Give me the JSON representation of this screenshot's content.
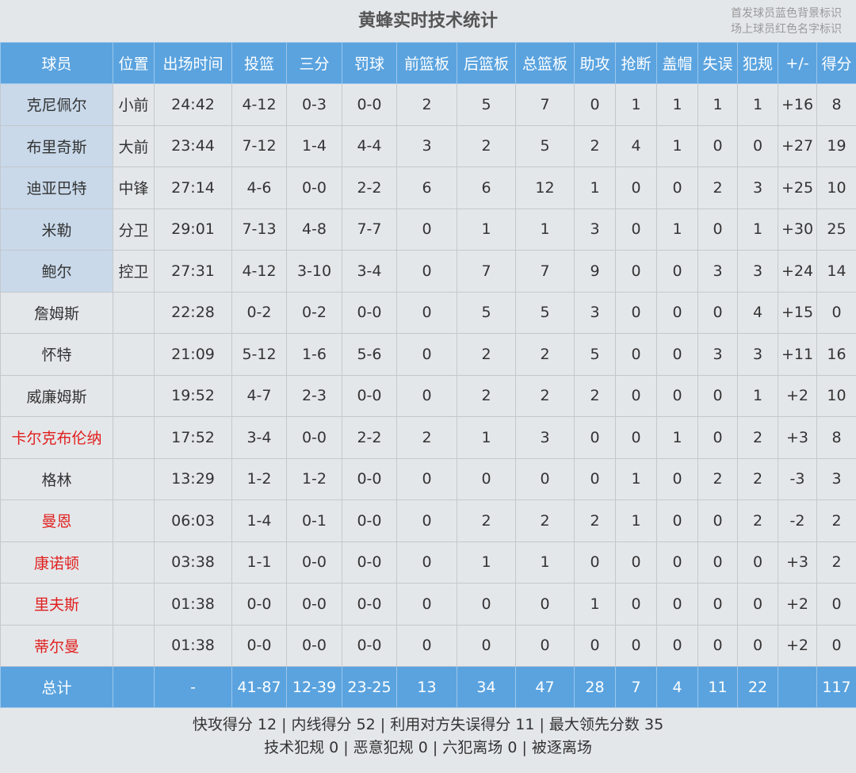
{
  "title": "黄蜂实时技术统计",
  "legend": [
    "首发球员蓝色背景标识",
    "场上球员红色名字标识"
  ],
  "colors": {
    "header": "#5aa3df",
    "starter_bg": "#c9d9ea",
    "on_court_name": "#e0201e"
  },
  "columns": [
    "球员",
    "位置",
    "出场时间",
    "投篮",
    "三分",
    "罚球",
    "前篮板",
    "后篮板",
    "总篮板",
    "助攻",
    "抢断",
    "盖帽",
    "失误",
    "犯规",
    "+/-",
    "得分"
  ],
  "players": [
    {
      "cells": [
        "克尼佩尔",
        "小前",
        "24:42",
        "4-12",
        "0-3",
        "0-0",
        "2",
        "5",
        "7",
        "0",
        "1",
        "1",
        "1",
        "1",
        "+16",
        "8"
      ],
      "starter": true,
      "on_court": false
    },
    {
      "cells": [
        "布里奇斯",
        "大前",
        "23:44",
        "7-12",
        "1-4",
        "4-4",
        "3",
        "2",
        "5",
        "2",
        "4",
        "1",
        "0",
        "0",
        "+27",
        "19"
      ],
      "starter": true,
      "on_court": false
    },
    {
      "cells": [
        "迪亚巴特",
        "中锋",
        "27:14",
        "4-6",
        "0-0",
        "2-2",
        "6",
        "6",
        "12",
        "1",
        "0",
        "0",
        "2",
        "3",
        "+25",
        "10"
      ],
      "starter": true,
      "on_court": false
    },
    {
      "cells": [
        "米勒",
        "分卫",
        "29:01",
        "7-13",
        "4-8",
        "7-7",
        "0",
        "1",
        "1",
        "3",
        "0",
        "1",
        "0",
        "1",
        "+30",
        "25"
      ],
      "starter": true,
      "on_court": false
    },
    {
      "cells": [
        "鲍尔",
        "控卫",
        "27:31",
        "4-12",
        "3-10",
        "3-4",
        "0",
        "7",
        "7",
        "9",
        "0",
        "0",
        "3",
        "3",
        "+24",
        "14"
      ],
      "starter": true,
      "on_court": false
    },
    {
      "cells": [
        "詹姆斯",
        "",
        "22:28",
        "0-2",
        "0-2",
        "0-0",
        "0",
        "5",
        "5",
        "3",
        "0",
        "0",
        "0",
        "4",
        "+15",
        "0"
      ],
      "starter": false,
      "on_court": false
    },
    {
      "cells": [
        "怀特",
        "",
        "21:09",
        "5-12",
        "1-6",
        "5-6",
        "0",
        "2",
        "2",
        "5",
        "0",
        "0",
        "3",
        "3",
        "+11",
        "16"
      ],
      "starter": false,
      "on_court": false
    },
    {
      "cells": [
        "威廉姆斯",
        "",
        "19:52",
        "4-7",
        "2-3",
        "0-0",
        "0",
        "2",
        "2",
        "2",
        "0",
        "0",
        "0",
        "1",
        "+2",
        "10"
      ],
      "starter": false,
      "on_court": false
    },
    {
      "cells": [
        "卡尔克布伦纳",
        "",
        "17:52",
        "3-4",
        "0-0",
        "2-2",
        "2",
        "1",
        "3",
        "0",
        "0",
        "1",
        "0",
        "2",
        "+3",
        "8"
      ],
      "starter": false,
      "on_court": true
    },
    {
      "cells": [
        "格林",
        "",
        "13:29",
        "1-2",
        "1-2",
        "0-0",
        "0",
        "0",
        "0",
        "0",
        "1",
        "0",
        "2",
        "2",
        "-3",
        "3"
      ],
      "starter": false,
      "on_court": false
    },
    {
      "cells": [
        "曼恩",
        "",
        "06:03",
        "1-4",
        "0-1",
        "0-0",
        "0",
        "2",
        "2",
        "2",
        "1",
        "0",
        "0",
        "2",
        "-2",
        "2"
      ],
      "starter": false,
      "on_court": true
    },
    {
      "cells": [
        "康诺顿",
        "",
        "03:38",
        "1-1",
        "0-0",
        "0-0",
        "0",
        "1",
        "1",
        "0",
        "0",
        "0",
        "0",
        "0",
        "+3",
        "2"
      ],
      "starter": false,
      "on_court": true
    },
    {
      "cells": [
        "里夫斯",
        "",
        "01:38",
        "0-0",
        "0-0",
        "0-0",
        "0",
        "0",
        "0",
        "1",
        "0",
        "0",
        "0",
        "0",
        "+2",
        "0"
      ],
      "starter": false,
      "on_court": true
    },
    {
      "cells": [
        "蒂尔曼",
        "",
        "01:38",
        "0-0",
        "0-0",
        "0-0",
        "0",
        "0",
        "0",
        "0",
        "0",
        "0",
        "0",
        "0",
        "+2",
        "0"
      ],
      "starter": false,
      "on_court": true
    }
  ],
  "totals": [
    "总计",
    "",
    "-",
    "41-87",
    "12-39",
    "23-25",
    "13",
    "34",
    "47",
    "28",
    "7",
    "4",
    "11",
    "22",
    "",
    "117"
  ],
  "footer": {
    "line1": "快攻得分 12 | 内线得分 52 | 利用对方失误得分 11 | 最大领先分数 35",
    "line2": "技术犯规 0 | 恶意犯规 0 | 六犯离场 0 | 被逐离场"
  }
}
